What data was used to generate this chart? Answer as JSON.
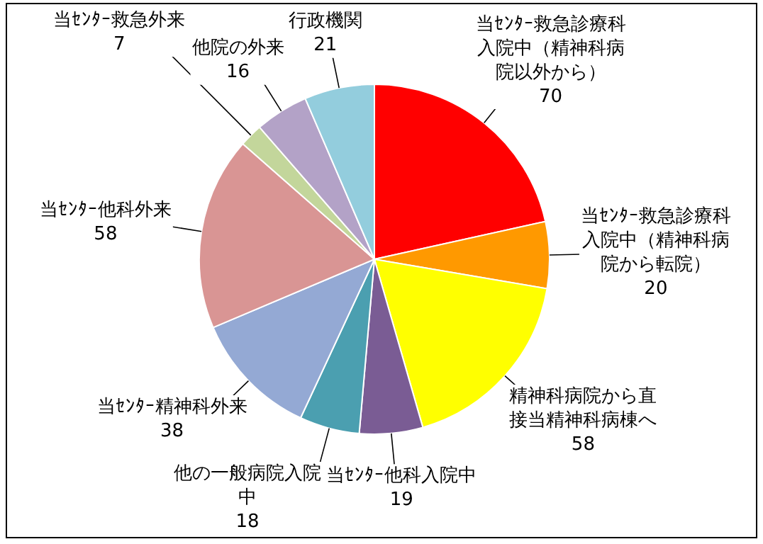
{
  "chart_data": {
    "type": "pie",
    "categories": [
      "当ｾﾝﾀｰ救急診療科入院中（精神科病院以外から）",
      "当ｾﾝﾀｰ救急診療科入院中（精神科病院から転院）",
      "精神科病院から直接当精神科病棟へ",
      "当ｾﾝﾀｰ他科入院中",
      "他の一般病院入院中",
      "当ｾﾝﾀｰ精神科外来",
      "当ｾﾝﾀｰ他科外来",
      "当ｾﾝﾀｰ救急外来",
      "他院の外来",
      "行政機関"
    ],
    "values": [
      70,
      20,
      58,
      19,
      18,
      38,
      58,
      7,
      16,
      21
    ],
    "colors": [
      "#ff0000",
      "#ff9900",
      "#ffff00",
      "#7a5c94",
      "#4b9fb0",
      "#94a9d4",
      "#d99594",
      "#c3d69b",
      "#b3a2c7",
      "#93cddd"
    ],
    "data_labels": true,
    "legend": false
  }
}
